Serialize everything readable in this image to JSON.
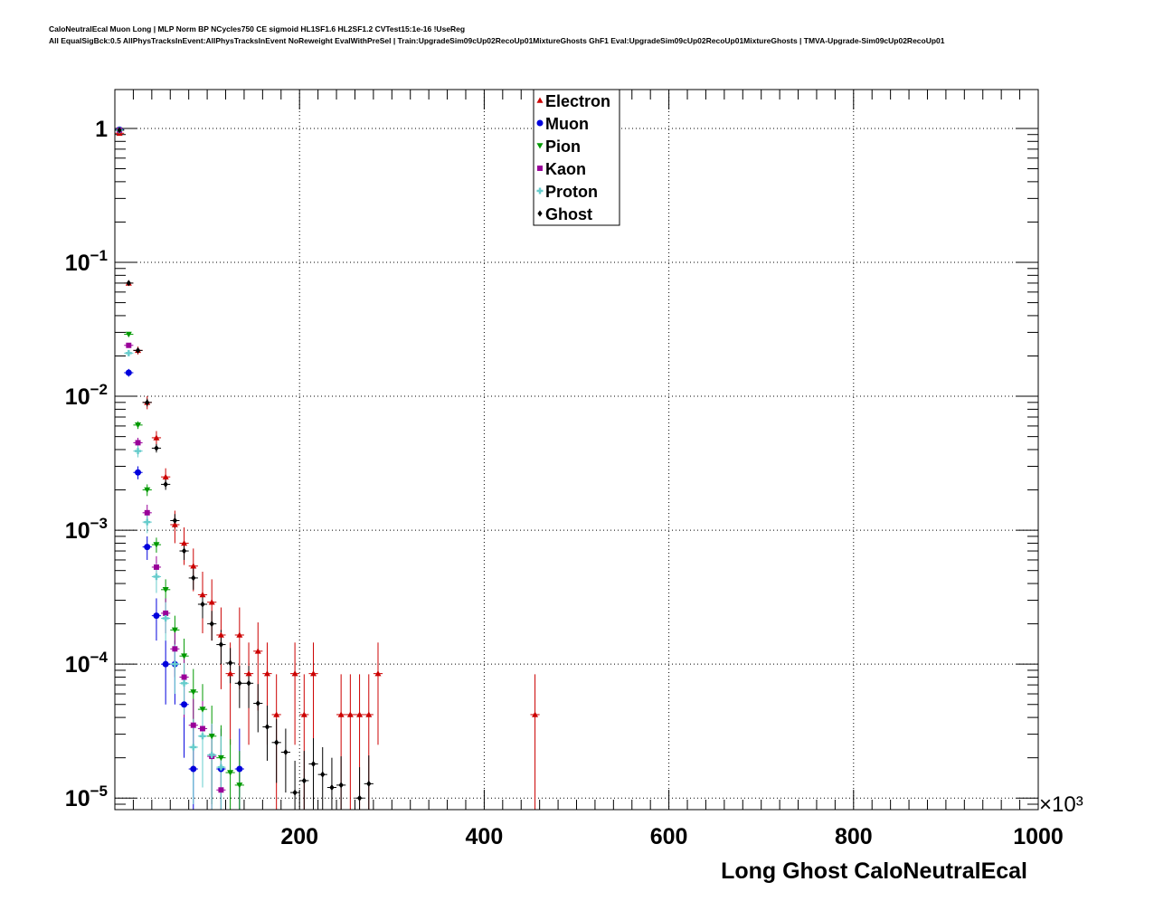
{
  "header": {
    "line1": "CaloNeutralEcal Muon Long | MLP Norm BP NCycles750 CE sigmoid HL1SF1.6 HL2SF1.2 CVTest15:1e-16 !UseReg",
    "line2": "All EqualSigBck:0.5 AllPhysTracksInEvent:AllPhysTracksInEvent NoReweight EvalWithPreSel | Train:UpgradeSim09cUp02RecoUp01MixtureGhosts GhF1 Eval:UpgradeSim09cUp02RecoUp01MixtureGhosts | TMVA-Upgrade-Sim09cUp02RecoUp01"
  },
  "chart_data": {
    "type": "scatter",
    "xlabel": "Long Ghost CaloNeutralEcal",
    "x_multiplier": "×10³",
    "xlim": [
      0,
      1000
    ],
    "ylim": [
      8.2e-06,
      1.95
    ],
    "yscale": "log",
    "grid": true,
    "legend_position": "top-center",
    "x_ticks": [
      {
        "value": 200,
        "label": "200"
      },
      {
        "value": 400,
        "label": "400"
      },
      {
        "value": 600,
        "label": "600"
      },
      {
        "value": 800,
        "label": "800"
      },
      {
        "value": 1000,
        "label": "1000"
      }
    ],
    "y_ticks": [
      {
        "value": 1,
        "base": "1",
        "exp": ""
      },
      {
        "value": 0.1,
        "base": "10",
        "exp": "−1"
      },
      {
        "value": 0.01,
        "base": "10",
        "exp": "−2"
      },
      {
        "value": 0.001,
        "base": "10",
        "exp": "−3"
      },
      {
        "value": 0.0001,
        "base": "10",
        "exp": "−4"
      },
      {
        "value": 1e-05,
        "base": "10",
        "exp": "−5"
      }
    ],
    "series": [
      {
        "name": "Electron",
        "color": "#cc0000",
        "marker": "triangle-up",
        "xerr": 5,
        "points": [
          [
            5,
            0.92,
            0.01
          ],
          [
            15,
            0.07,
            0.003
          ],
          [
            25,
            0.022,
            0.0015
          ],
          [
            35,
            0.009,
            0.001
          ],
          [
            45,
            0.0049,
            0.0006
          ],
          [
            55,
            0.0025,
            0.0004
          ],
          [
            65,
            0.0011,
            0.0003
          ],
          [
            75,
            0.0008,
            0.00025
          ],
          [
            85,
            0.00054,
            0.00019
          ],
          [
            95,
            0.00033,
            0.00016
          ],
          [
            105,
            0.00029,
            0.00014
          ],
          [
            115,
            0.000165,
            0.0001
          ],
          [
            125,
            8.5e-05,
            6e-05
          ],
          [
            135,
            0.000165,
            0.0001
          ],
          [
            145,
            8.5e-05,
            6e-05
          ],
          [
            155,
            0.000125,
            8e-05
          ],
          [
            165,
            8.5e-05,
            6e-05
          ],
          [
            175,
            4.2e-05,
            4.2e-05
          ],
          [
            195,
            8.5e-05,
            6e-05
          ],
          [
            205,
            4.2e-05,
            4.2e-05
          ],
          [
            215,
            8.5e-05,
            6e-05
          ],
          [
            245,
            4.2e-05,
            4.2e-05
          ],
          [
            255,
            4.2e-05,
            4.2e-05
          ],
          [
            265,
            4.2e-05,
            4.2e-05
          ],
          [
            275,
            4.2e-05,
            4.2e-05
          ],
          [
            285,
            8.5e-05,
            6e-05
          ],
          [
            455,
            4.2e-05,
            4.2e-05
          ]
        ]
      },
      {
        "name": "Muon",
        "color": "#0000dd",
        "marker": "circle",
        "xerr": 5,
        "points": [
          [
            5,
            0.98,
            0.005
          ],
          [
            15,
            0.015,
            0.001
          ],
          [
            25,
            0.0027,
            0.0003
          ],
          [
            35,
            0.00075,
            0.00015
          ],
          [
            45,
            0.00023,
            8e-05
          ],
          [
            55,
            0.0001,
            5e-05
          ],
          [
            65,
            0.0001,
            5e-05
          ],
          [
            75,
            5e-05,
            3e-05
          ],
          [
            85,
            1.65e-05,
            1.65e-05
          ],
          [
            115,
            1.65e-05,
            1.65e-05
          ],
          [
            135,
            1.65e-05,
            1.65e-05
          ]
        ]
      },
      {
        "name": "Pion",
        "color": "#009900",
        "marker": "triangle-down",
        "xerr": 5,
        "points": [
          [
            5,
            0.97,
            0.005
          ],
          [
            15,
            0.029,
            0.001
          ],
          [
            25,
            0.0061,
            0.0004
          ],
          [
            35,
            0.002,
            0.0002
          ],
          [
            45,
            0.00078,
            0.0001
          ],
          [
            55,
            0.00036,
            7e-05
          ],
          [
            65,
            0.00018,
            5e-05
          ],
          [
            75,
            0.000115,
            4e-05
          ],
          [
            85,
            6.2e-05,
            3e-05
          ],
          [
            95,
            4.6e-05,
            2.5e-05
          ],
          [
            105,
            2.9e-05,
            2e-05
          ],
          [
            115,
            2e-05,
            1.5e-05
          ],
          [
            125,
            1.55e-05,
            1.2e-05
          ],
          [
            135,
            1.25e-05,
            1e-05
          ]
        ]
      },
      {
        "name": "Kaon",
        "color": "#990099",
        "marker": "square",
        "xerr": 5,
        "points": [
          [
            5,
            0.97,
            0.005
          ],
          [
            15,
            0.024,
            0.001
          ],
          [
            25,
            0.0045,
            0.0004
          ],
          [
            35,
            0.00135,
            0.0002
          ],
          [
            45,
            0.00053,
            0.00011
          ],
          [
            55,
            0.00024,
            7e-05
          ],
          [
            65,
            0.00013,
            5e-05
          ],
          [
            75,
            8e-05,
            4e-05
          ],
          [
            85,
            3.5e-05,
            2e-05
          ],
          [
            95,
            3.3e-05,
            2e-05
          ],
          [
            105,
            2.05e-05,
            1.5e-05
          ],
          [
            115,
            1.15e-05,
            1.15e-05
          ]
        ]
      },
      {
        "name": "Proton",
        "color": "#66cccc",
        "marker": "cross",
        "xerr": 5,
        "points": [
          [
            5,
            0.97,
            0.005
          ],
          [
            15,
            0.021,
            0.001
          ],
          [
            25,
            0.0039,
            0.0004
          ],
          [
            35,
            0.00115,
            0.0002
          ],
          [
            45,
            0.00045,
            0.00011
          ],
          [
            55,
            0.00022,
            7e-05
          ],
          [
            65,
            0.0001,
            4e-05
          ],
          [
            75,
            7.2e-05,
            3e-05
          ],
          [
            85,
            2.4e-05,
            1.5e-05
          ],
          [
            95,
            2.9e-05,
            1.7e-05
          ],
          [
            105,
            2.1e-05,
            1.5e-05
          ],
          [
            115,
            1.7e-05,
            1.2e-05
          ]
        ]
      },
      {
        "name": "Ghost",
        "color": "#000000",
        "marker": "diamond",
        "xerr": 5,
        "points": [
          [
            5,
            0.97,
            0.005
          ],
          [
            15,
            0.07,
            0.002
          ],
          [
            25,
            0.022,
            0.001
          ],
          [
            35,
            0.009,
            0.0006
          ],
          [
            45,
            0.0041,
            0.0003
          ],
          [
            55,
            0.0022,
            0.0002
          ],
          [
            65,
            0.00118,
            0.00014
          ],
          [
            75,
            0.0007,
            0.0001
          ],
          [
            85,
            0.00044,
            8e-05
          ],
          [
            95,
            0.00028,
            6e-05
          ],
          [
            105,
            0.0002,
            5e-05
          ],
          [
            115,
            0.00014,
            4e-05
          ],
          [
            125,
            0.000102,
            3e-05
          ],
          [
            135,
            7.2e-05,
            2.5e-05
          ],
          [
            145,
            7.2e-05,
            2.5e-05
          ],
          [
            155,
            5.1e-05,
            2e-05
          ],
          [
            165,
            3.4e-05,
            1.5e-05
          ],
          [
            175,
            2.6e-05,
            1.3e-05
          ],
          [
            185,
            2.2e-05,
            1.1e-05
          ],
          [
            195,
            1.1e-05,
            8e-06
          ],
          [
            205,
            1.35e-05,
            9e-06
          ],
          [
            215,
            1.8e-05,
            1e-05
          ],
          [
            225,
            1.5e-05,
            9e-06
          ],
          [
            235,
            1.2e-05,
            8e-06
          ],
          [
            245,
            1.25e-05,
            8e-06
          ],
          [
            265,
            1e-05,
            7e-06
          ],
          [
            275,
            1.28e-05,
            8e-06
          ]
        ]
      }
    ]
  }
}
